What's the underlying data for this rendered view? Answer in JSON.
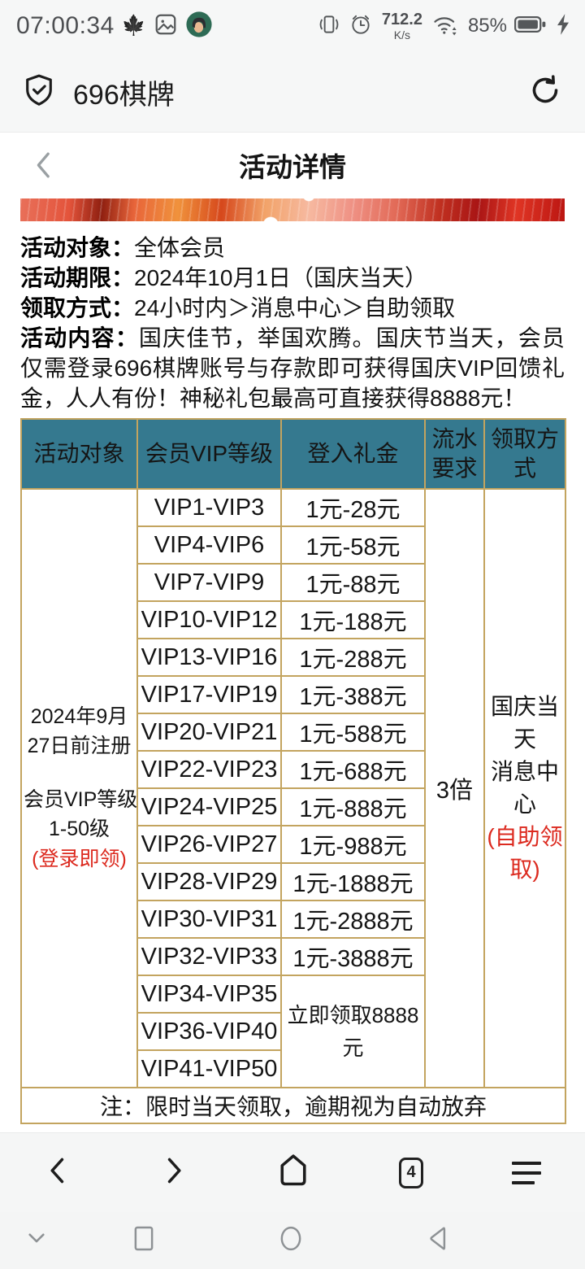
{
  "status_bar": {
    "time": "07:00:34",
    "network_speed": "712.2",
    "network_speed_unit": "K/s",
    "battery_percent": "85%"
  },
  "browser": {
    "site_title": "696棋牌",
    "tab_count": "4"
  },
  "page": {
    "title": "活动详情"
  },
  "info": {
    "items": [
      {
        "label": "活动对象：",
        "text": "全体会员"
      },
      {
        "label": "活动期限：",
        "text": "2024年10月1日（国庆当天）"
      },
      {
        "label": "领取方式：",
        "text": "24小时内＞消息中心＞自助领取"
      },
      {
        "label": "活动内容：",
        "text": "国庆佳节，举国欢腾。国庆节当天，会员仅需登录696棋牌账号与存款即可获得国庆VIP回馈礼金，人人有份！神秘礼包最高可直接获得8888元！"
      }
    ]
  },
  "table": {
    "headers": [
      "活动对象",
      "会员VIP等级",
      "登入礼金",
      "流水要求",
      "领取方式"
    ],
    "audience": {
      "part1": "2024年9月\n27日前注册",
      "part2": "会员VIP等级\n1-50级",
      "red": "(登录即领)"
    },
    "turnover": "3倍",
    "claim": {
      "black": "国庆当天\n消息中心",
      "red": "(自助领取)"
    },
    "rows": [
      {
        "level": "VIP1-VIP3",
        "gift": "1元-28元"
      },
      {
        "level": "VIP4-VIP6",
        "gift": "1元-58元"
      },
      {
        "level": "VIP7-VIP9",
        "gift": "1元-88元"
      },
      {
        "level": "VIP10-VIP12",
        "gift": "1元-188元"
      },
      {
        "level": "VIP13-VIP16",
        "gift": "1元-288元"
      },
      {
        "level": "VIP17-VIP19",
        "gift": "1元-388元"
      },
      {
        "level": "VIP20-VIP21",
        "gift": "1元-588元"
      },
      {
        "level": "VIP22-VIP23",
        "gift": "1元-688元"
      },
      {
        "level": "VIP24-VIP25",
        "gift": "1元-888元"
      },
      {
        "level": "VIP26-VIP27",
        "gift": "1元-988元"
      },
      {
        "level": "VIP28-VIP29",
        "gift": "1元-1888元"
      },
      {
        "level": "VIP30-VIP31",
        "gift": "1元-2888元"
      },
      {
        "level": "VIP32-VIP33",
        "gift": "1元-3888元"
      },
      {
        "level": "VIP34-VIP35",
        "gift": "立即领取8888元",
        "gift_rowspan": 3
      },
      {
        "level": "VIP36-VIP40"
      },
      {
        "level": "VIP41-VIP50"
      }
    ],
    "note": "注：限时当天领取，逾期视为自动放弃"
  },
  "colors": {
    "header_teal": "#35798f",
    "border_gold": "#c3a45f",
    "accent_red": "#dc2a1f"
  }
}
